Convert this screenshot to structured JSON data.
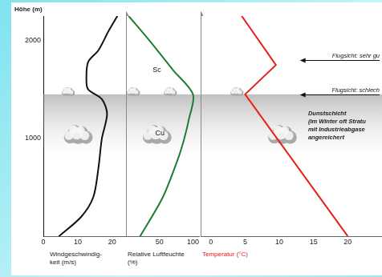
{
  "chart_data": [
    {
      "type": "line",
      "x_label": [
        "Windgeschwindig-",
        "keit (m/s)"
      ],
      "y_label": "Höhe (m)",
      "color": "#111111",
      "grid": false,
      "tick_labels": true,
      "x": [
        4.5,
        11,
        14.5,
        16,
        17,
        18.5,
        17,
        13,
        12.5,
        13,
        16,
        19,
        21.5
      ],
      "values": [
        0,
        200,
        400,
        700,
        1000,
        1250,
        1400,
        1500,
        1600,
        1780,
        1900,
        2100,
        2250
      ],
      "xlim": [
        0,
        24
      ],
      "xticks": [
        0,
        10,
        20
      ],
      "ylim": [
        0,
        2250
      ],
      "yticks": [
        1000,
        2000
      ]
    },
    {
      "type": "line",
      "x_label": [
        "Relative Luftfeuchte",
        "(%)"
      ],
      "color": "#1e7d32",
      "grid": false,
      "tick_labels": "x",
      "x": [
        21,
        55,
        78,
        87,
        94,
        100,
        70,
        35,
        4
      ],
      "values": [
        0,
        400,
        800,
        1000,
        1200,
        1450,
        1700,
        2000,
        2250
      ],
      "xlim": [
        0,
        110
      ],
      "xticks": [
        50,
        100
      ],
      "ylim": [
        0,
        2250
      ],
      "yticks": [
        1000,
        2000
      ]
    },
    {
      "type": "line",
      "x_label": [
        "Temperatur (°C)"
      ],
      "color": "#e8201a",
      "grid": false,
      "tick_labels": "x",
      "x": [
        20,
        5,
        9.5,
        4.5
      ],
      "values": [
        0,
        1450,
        1750,
        2250
      ],
      "xlim": [
        -1.5,
        25
      ],
      "xticks": [
        0,
        5,
        10,
        15,
        20
      ],
      "ylim": [
        0,
        2250
      ],
      "yticks": [
        1000,
        2000
      ]
    }
  ],
  "haze_layer": {
    "bottom": 800,
    "top": 1450,
    "label": [
      "Dunstschicht",
      "(im Winter oft Stratu",
      "mit Industrieabgase",
      "angereichert"
    ]
  },
  "annotations": [
    {
      "text": "Flugsicht: sehr gu",
      "height": 1800
    },
    {
      "text": "Flugsicht: schlech",
      "height": 1450
    }
  ],
  "cloud_labels": [
    {
      "text": "Sc",
      "height": 1700
    },
    {
      "text": "Cu",
      "height": 1050
    }
  ]
}
